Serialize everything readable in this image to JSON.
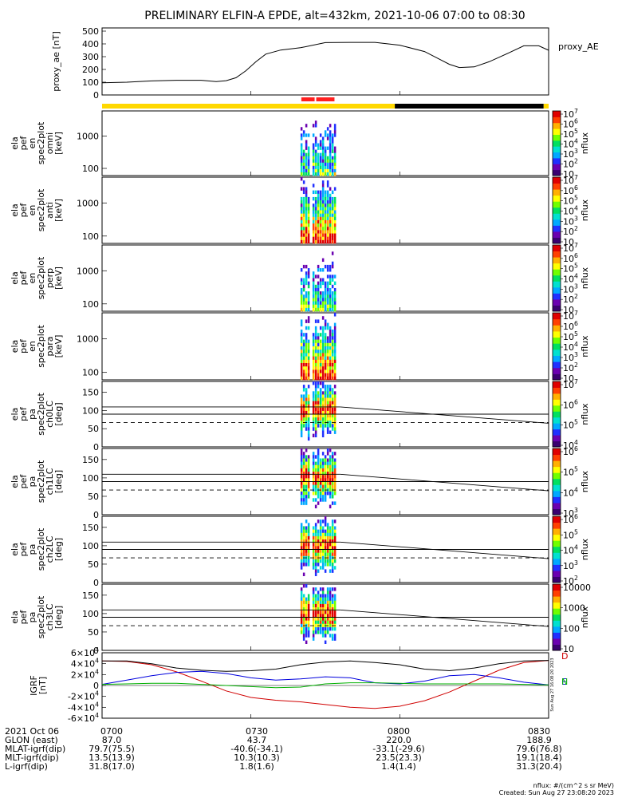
{
  "title": "PRELIMINARY ELFIN-A EPDE, alt=432km, 2021-10-06 07:00 to 08:30",
  "footer": {
    "units_note": "nflux: #/(cm^2 s sr MeV)",
    "created": "Created: Sun Aug 27 23:08:20 2023",
    "side_stamp": "Sun Aug 27 16:08:20 2023"
  },
  "colorbar_colors": [
    "#3a0070",
    "#6a00b0",
    "#2030ff",
    "#00a8ff",
    "#00e0d0",
    "#00e060",
    "#70ff00",
    "#ffff00",
    "#ffb000",
    "#ff4000",
    "#e00000"
  ],
  "chart_data": [
    {
      "type": "line",
      "name": "proxy_ae",
      "ylabel": "proxy_ae [nT]",
      "legend": "proxy_AE",
      "ylim": [
        0,
        500
      ],
      "yticks": [
        "0",
        "100",
        "200",
        "300",
        "400",
        "500"
      ],
      "x": [
        "07:00",
        "07:05",
        "07:10",
        "07:15",
        "07:20",
        "07:23",
        "07:25",
        "07:27",
        "07:29",
        "07:31",
        "07:33",
        "07:36",
        "07:40",
        "07:45",
        "07:50",
        "07:55",
        "08:00",
        "08:05",
        "08:08",
        "08:10",
        "08:12",
        "08:15",
        "08:18",
        "08:20",
        "08:22",
        "08:25",
        "08:28",
        "08:30"
      ],
      "y": [
        95,
        100,
        110,
        115,
        115,
        105,
        112,
        135,
        190,
        260,
        320,
        352,
        370,
        410,
        412,
        412,
        390,
        340,
        280,
        240,
        215,
        220,
        260,
        295,
        330,
        385,
        385,
        350
      ],
      "phase_bar": [
        {
          "from": "07:00",
          "to": "07:59",
          "color": "#ffd800"
        },
        {
          "from": "07:59",
          "to": "08:29",
          "color": "#000000"
        },
        {
          "from": "08:29",
          "to": "08:30",
          "color": "#ffd800"
        }
      ],
      "science_zones": [
        {
          "from": "07:40",
          "to": "07:43",
          "color": "#ff2020"
        },
        {
          "from": "07:43",
          "to": "07:47",
          "color": "#ff2020"
        }
      ]
    },
    {
      "type": "heatmap",
      "name": "ela_pef_en_spec2plot_omni",
      "ylabel": [
        "ela",
        "pef",
        "en",
        "spec2plot",
        "omni",
        "[keV]"
      ],
      "yscale": "log",
      "yticks": [
        "100",
        "1000"
      ],
      "zlabel": "nflux",
      "zticks": [
        "10",
        "10^2",
        "10^3",
        "10^4",
        "10^5",
        "10^6",
        "10^7"
      ],
      "active_window": [
        "07:40",
        "07:47"
      ]
    },
    {
      "type": "heatmap",
      "name": "ela_pef_en_spec2plot_anti",
      "ylabel": [
        "ela",
        "pef",
        "en",
        "spec2plot",
        "anti",
        "[keV]"
      ],
      "yscale": "log",
      "yticks": [
        "100",
        "1000"
      ],
      "zlabel": "nflux",
      "zticks": [
        "10",
        "10^2",
        "10^3",
        "10^4",
        "10^5",
        "10^6",
        "10^7"
      ],
      "active_window": [
        "07:41",
        "07:47"
      ]
    },
    {
      "type": "heatmap",
      "name": "ela_pef_en_spec2plot_perp",
      "ylabel": [
        "ela",
        "pef",
        "en",
        "spec2plot",
        "perp",
        "[keV]"
      ],
      "yscale": "log",
      "yticks": [
        "100",
        "1000"
      ],
      "zlabel": "nflux",
      "zticks": [
        "10",
        "10^2",
        "10^3",
        "10^4",
        "10^5",
        "10^6",
        "10^7"
      ],
      "active_window": [
        "07:40",
        "07:47"
      ]
    },
    {
      "type": "heatmap",
      "name": "ela_pef_en_spec2plot_para",
      "ylabel": [
        "ela",
        "pef",
        "en",
        "spec2plot",
        "para",
        "[keV]"
      ],
      "yscale": "log",
      "yticks": [
        "100",
        "1000"
      ],
      "zlabel": "nflux",
      "zticks": [
        "10",
        "10^2",
        "10^3",
        "10^4",
        "10^5",
        "10^6",
        "10^7"
      ],
      "active_window": [
        "07:41",
        "07:47"
      ]
    },
    {
      "type": "heatmap",
      "name": "ela_pef_pa_spec2plot_ch0LC",
      "ylabel": [
        "ela",
        "pef",
        "pa",
        "spec2plot",
        "ch0LC",
        "[deg]"
      ],
      "ylim": [
        0,
        180
      ],
      "yticks": [
        "0",
        "50",
        "100",
        "150"
      ],
      "zlabel": "nflux",
      "zticks": [
        "10^4",
        "10^5",
        "10^6",
        "10^7"
      ],
      "lines": {
        "lc_start": 110,
        "lc_end": 65,
        "anti_lc": 67
      }
    },
    {
      "type": "heatmap",
      "name": "ela_pef_pa_spec2plot_ch1LC",
      "ylabel": [
        "ela",
        "pef",
        "pa",
        "spec2plot",
        "ch1LC",
        "[deg]"
      ],
      "ylim": [
        0,
        180
      ],
      "yticks": [
        "0",
        "50",
        "100",
        "150"
      ],
      "zlabel": "nflux",
      "zticks": [
        "10^3",
        "10^4",
        "10^5",
        "10^6"
      ],
      "lines": {
        "lc_start": 110,
        "lc_end": 65,
        "anti_lc": 67
      }
    },
    {
      "type": "heatmap",
      "name": "ela_pef_pa_spec2plot_ch2LC",
      "ylabel": [
        "ela",
        "pef",
        "pa",
        "spec2plot",
        "ch2LC",
        "[deg]"
      ],
      "ylim": [
        0,
        180
      ],
      "yticks": [
        "0",
        "50",
        "100",
        "150"
      ],
      "zlabel": "nflux",
      "zticks": [
        "10^2",
        "10^3",
        "10^4",
        "10^5",
        "10^6"
      ],
      "lines": {
        "lc_start": 110,
        "lc_end": 65,
        "anti_lc": 67
      }
    },
    {
      "type": "heatmap",
      "name": "ela_pef_pa_spec2plot_ch3LC",
      "ylabel": [
        "ela",
        "pef",
        "pa",
        "spec2plot",
        "ch3LC",
        "[deg]"
      ],
      "ylim": [
        0,
        180
      ],
      "yticks": [
        "0",
        "50",
        "100",
        "150"
      ],
      "zlabel": "nflux",
      "zticks": [
        "10",
        "100",
        "1000",
        "10000"
      ],
      "lines": {
        "lc_start": 110,
        "lc_end": 65,
        "anti_lc": 67
      }
    },
    {
      "type": "line",
      "name": "IGRF",
      "ylabel": [
        "IGRF",
        "[nT]"
      ],
      "ylim": [
        -60000,
        60000
      ],
      "yticks": [
        "-6×10^4",
        "-4×10^4",
        "-2×10^4",
        "0",
        "2×10^4",
        "4×10^4",
        "6×10^4"
      ],
      "legend": [
        "D",
        "E",
        "N"
      ],
      "x": [
        "07:00",
        "07:05",
        "07:10",
        "07:15",
        "07:20",
        "07:25",
        "07:30",
        "07:35",
        "07:40",
        "07:45",
        "07:50",
        "07:55",
        "08:00",
        "08:05",
        "08:10",
        "08:15",
        "08:20",
        "08:25",
        "08:30"
      ],
      "series": [
        {
          "name": "D",
          "color": "#d00000",
          "values": [
            45000,
            44000,
            38000,
            25000,
            8000,
            -10000,
            -22000,
            -27000,
            -30000,
            -35000,
            -40000,
            -42000,
            -38000,
            -28000,
            -12000,
            8000,
            28000,
            42000,
            46000
          ]
        },
        {
          "name": "E",
          "color": "#0000dd",
          "values": [
            2000,
            10000,
            18000,
            24000,
            26000,
            22000,
            14000,
            10000,
            12000,
            16000,
            14000,
            5000,
            3000,
            8000,
            18000,
            20000,
            14000,
            6000,
            1000
          ]
        },
        {
          "name": "N",
          "color": "#00b000",
          "values": [
            2000,
            3000,
            4000,
            4000,
            2000,
            0,
            -2000,
            -4000,
            -3000,
            3000,
            5000,
            5000,
            4000,
            3000,
            3000,
            3000,
            3000,
            2000,
            1000
          ]
        },
        {
          "name": "total",
          "color": "#000000",
          "values": [
            45000,
            45000,
            40000,
            32000,
            28000,
            26000,
            27000,
            30000,
            38000,
            43000,
            45000,
            42000,
            38000,
            30000,
            27000,
            32000,
            40000,
            45000,
            46000
          ]
        }
      ]
    }
  ],
  "xaxis": {
    "tick_labels": [
      "0700",
      "0730",
      "0800",
      "0830"
    ],
    "range": [
      "07:00",
      "08:30"
    ],
    "rows": [
      {
        "label": "2021 Oct 06",
        "values": [
          "0700",
          "0730",
          "0800",
          "0830"
        ]
      },
      {
        "label": "GLON (east)",
        "values": [
          "87.0",
          "43.7",
          "220.0",
          "188.9"
        ]
      },
      {
        "label": "MLAT-igrf(dip)",
        "values": [
          "79.7(75.5)",
          "-40.6(-34.1)",
          "-33.1(-29.6)",
          "79.6(76.8)"
        ]
      },
      {
        "label": "MLT-igrf(dip)",
        "values": [
          "13.5(13.9)",
          "10.3(10.3)",
          "23.5(23.3)",
          "19.1(18.4)"
        ]
      },
      {
        "label": "L-igrf(dip)",
        "values": [
          "31.8(17.0)",
          "1.8(1.6)",
          "1.4(1.4)",
          "31.3(20.4)"
        ]
      }
    ]
  }
}
